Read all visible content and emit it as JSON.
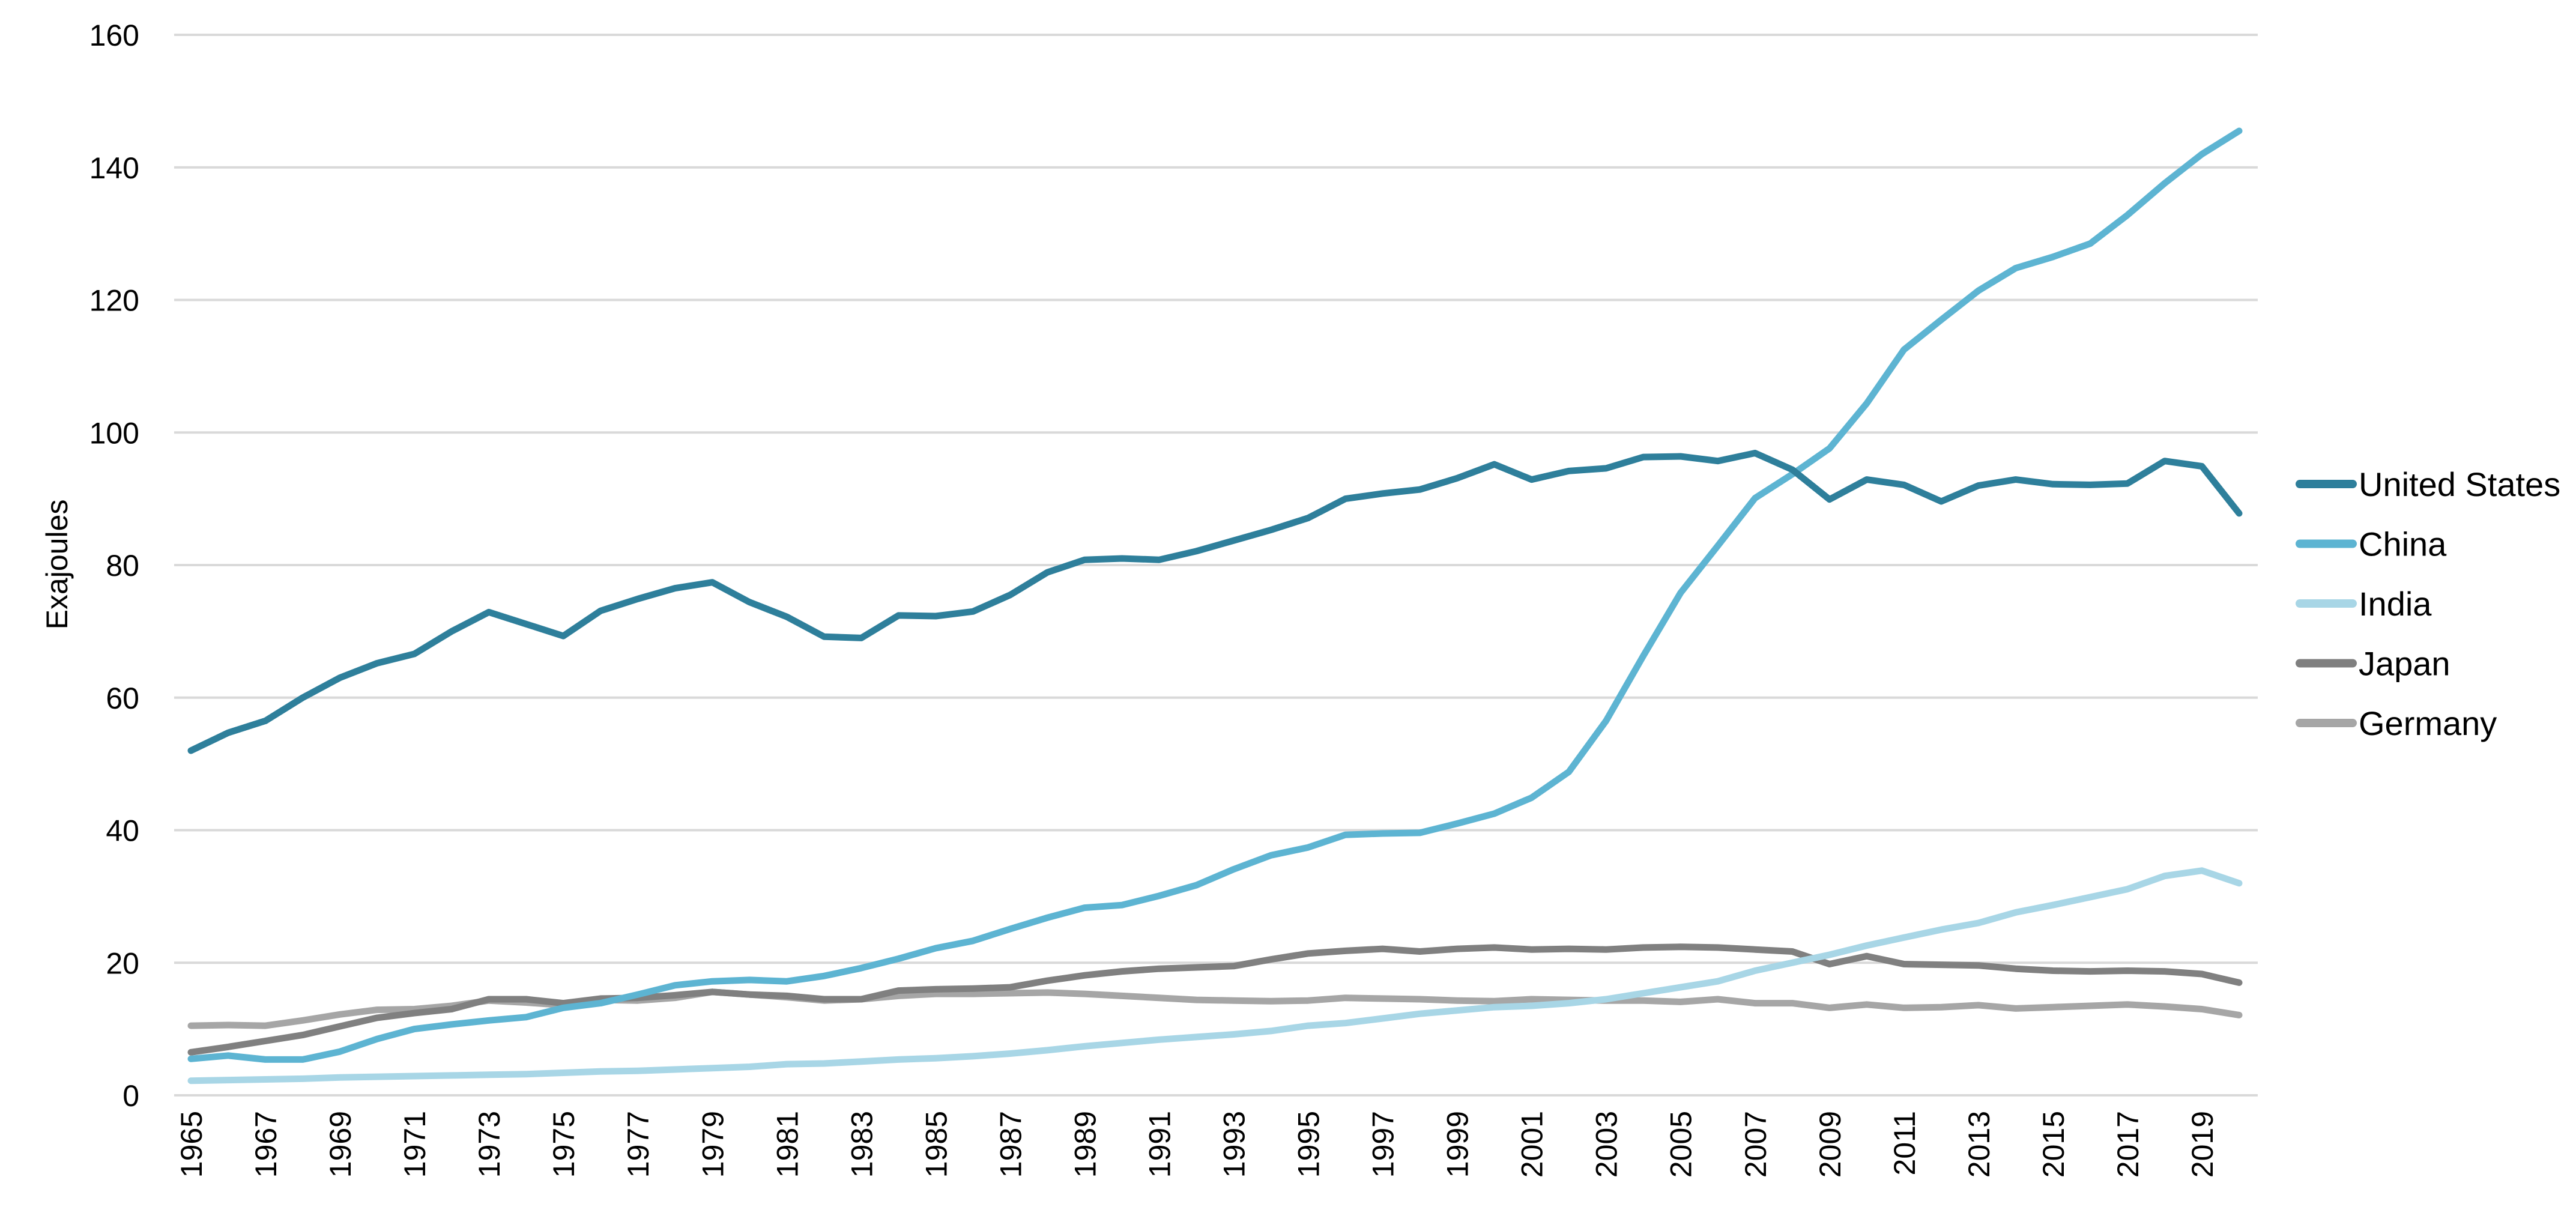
{
  "chart_data": {
    "type": "line",
    "title": "",
    "xlabel": "",
    "ylabel": "Exajoules",
    "ylim": [
      0,
      160
    ],
    "yticks": [
      0,
      20,
      40,
      60,
      80,
      100,
      120,
      140,
      160
    ],
    "xlim": [
      1965,
      2020
    ],
    "xtick_labels": [
      "1965",
      "1967",
      "1969",
      "1971",
      "1973",
      "1975",
      "1977",
      "1979",
      "1981",
      "1983",
      "1985",
      "1987",
      "1989",
      "1991",
      "1993",
      "1995",
      "1997",
      "1999",
      "2001",
      "2003",
      "2005",
      "2007",
      "2009",
      "2011",
      "2013",
      "2015",
      "2017",
      "2019"
    ],
    "grid": true,
    "legend_position": "right",
    "x": [
      1965,
      1966,
      1967,
      1968,
      1969,
      1970,
      1971,
      1972,
      1973,
      1974,
      1975,
      1976,
      1977,
      1978,
      1979,
      1980,
      1981,
      1982,
      1983,
      1984,
      1985,
      1986,
      1987,
      1988,
      1989,
      1990,
      1991,
      1992,
      1993,
      1994,
      1995,
      1996,
      1997,
      1998,
      1999,
      2000,
      2001,
      2002,
      2003,
      2004,
      2005,
      2006,
      2007,
      2008,
      2009,
      2010,
      2011,
      2012,
      2013,
      2014,
      2015,
      2016,
      2017,
      2018,
      2019,
      2020
    ],
    "series": [
      {
        "name": "United States",
        "color": "#2e7f9b",
        "values": [
          52,
          54.7,
          56.5,
          60,
          63,
          65.2,
          66.6,
          70,
          72.9,
          71.1,
          69.3,
          73.1,
          74.9,
          76.5,
          77.4,
          74.4,
          72.2,
          69.2,
          69,
          72.4,
          72.3,
          73,
          75.5,
          78.9,
          80.8,
          81,
          80.8,
          82.1,
          83.7,
          85.3,
          87.1,
          90,
          90.8,
          91.4,
          93.1,
          95.2,
          92.9,
          94.2,
          94.6,
          96.3,
          96.4,
          95.7,
          96.9,
          94.4,
          89.9,
          92.9,
          92.1,
          89.6,
          92,
          92.9,
          92.2,
          92.1,
          92.3,
          95.7,
          94.9,
          87.8
        ]
      },
      {
        "name": "China",
        "color": "#5db4d2",
        "values": [
          5.5,
          6,
          5.4,
          5.4,
          6.6,
          8.5,
          10,
          10.7,
          11.3,
          11.8,
          13.2,
          13.9,
          15.2,
          16.6,
          17.2,
          17.4,
          17.2,
          18,
          19.2,
          20.6,
          22.2,
          23.3,
          25.1,
          26.8,
          28.3,
          28.7,
          30.1,
          31.7,
          34.1,
          36.2,
          37.4,
          39.3,
          39.5,
          39.6,
          41,
          42.5,
          44.9,
          48.8,
          56.5,
          66.3,
          75.8,
          82.9,
          90.1,
          93.7,
          97.6,
          104.4,
          112.5,
          117,
          121.4,
          124.8,
          126.5,
          128.5,
          132.8,
          137.6,
          142,
          145.5
        ]
      },
      {
        "name": "India",
        "color": "#a8d6e6",
        "values": [
          2.2,
          2.3,
          2.4,
          2.5,
          2.7,
          2.8,
          2.9,
          3,
          3.1,
          3.2,
          3.4,
          3.6,
          3.7,
          3.9,
          4.1,
          4.3,
          4.7,
          4.8,
          5.1,
          5.4,
          5.6,
          5.9,
          6.3,
          6.8,
          7.4,
          7.9,
          8.4,
          8.8,
          9.2,
          9.7,
          10.5,
          10.9,
          11.6,
          12.3,
          12.8,
          13.3,
          13.5,
          13.9,
          14.5,
          15.4,
          16.3,
          17.2,
          18.8,
          20,
          21.2,
          22.6,
          23.8,
          25,
          26,
          27.6,
          28.7,
          29.9,
          31.1,
          33.1,
          33.9,
          32
        ]
      },
      {
        "name": "Japan",
        "color": "#808080",
        "values": [
          6.5,
          7.3,
          8.2,
          9.1,
          10.4,
          11.7,
          12.4,
          13,
          14.5,
          14.5,
          13.9,
          14.6,
          14.7,
          15.1,
          15.6,
          15.2,
          15,
          14.5,
          14.5,
          15.8,
          16,
          16.1,
          16.3,
          17.3,
          18.1,
          18.7,
          19.1,
          19.3,
          19.5,
          20.5,
          21.4,
          21.8,
          22.1,
          21.7,
          22.1,
          22.3,
          22,
          22.1,
          22,
          22.3,
          22.4,
          22.3,
          22,
          21.7,
          19.8,
          21,
          19.8,
          19.7,
          19.6,
          19.1,
          18.8,
          18.7,
          18.8,
          18.7,
          18.3,
          17
        ]
      },
      {
        "name": "Germany",
        "color": "#a6a6a6",
        "values": [
          10.5,
          10.6,
          10.5,
          11.3,
          12.2,
          12.9,
          13,
          13.5,
          14.3,
          14,
          13.6,
          14.4,
          14.3,
          14.7,
          15.6,
          15.2,
          14.8,
          14.3,
          14.5,
          15,
          15.3,
          15.3,
          15.4,
          15.5,
          15.3,
          15,
          14.7,
          14.4,
          14.3,
          14.2,
          14.3,
          14.7,
          14.6,
          14.5,
          14.3,
          14.2,
          14.5,
          14.4,
          14.3,
          14.3,
          14.1,
          14.5,
          13.9,
          13.9,
          13.2,
          13.7,
          13.2,
          13.3,
          13.6,
          13.1,
          13.3,
          13.5,
          13.7,
          13.4,
          13,
          12.1
        ]
      }
    ]
  }
}
